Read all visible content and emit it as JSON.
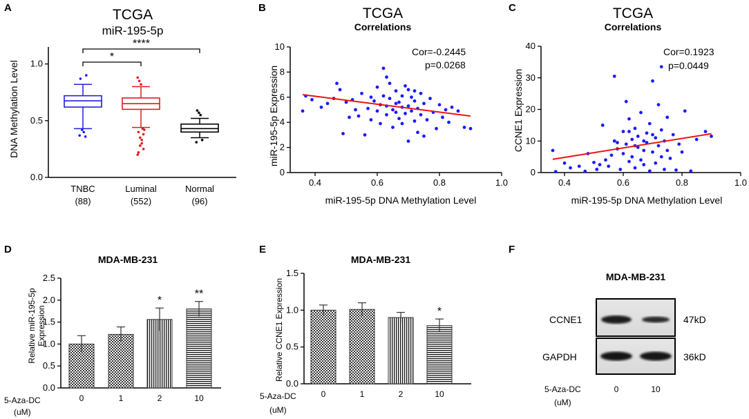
{
  "colors": {
    "blue": "#1f1fdd",
    "red": "#e01a1a",
    "black": "#000000",
    "scatter_blue": "#1a1aff",
    "line_red": "#ee1111"
  },
  "panel_labels": [
    "A",
    "B",
    "C",
    "D",
    "E",
    "F"
  ],
  "chart_data": [
    {
      "id": "A",
      "type": "box",
      "title": "TCGA",
      "subtitle": "miR-195-5p",
      "ylabel": "DNA Methylation Level",
      "ylim": [
        0.0,
        1.15
      ],
      "yticks": [
        "0.0",
        "0.5",
        "1.0"
      ],
      "groups": [
        {
          "name": "TNBC",
          "n": "(88)",
          "min": 0.43,
          "q1": 0.62,
          "median": 0.675,
          "q3": 0.72,
          "max": 0.82,
          "outliers": [
            0.37,
            0.36,
            0.4,
            0.42,
            0.87,
            0.9
          ]
        },
        {
          "name": "Luminal",
          "n": "(552)",
          "min": 0.44,
          "q1": 0.6,
          "median": 0.65,
          "q3": 0.7,
          "max": 0.8,
          "outliers": [
            0.2,
            0.25,
            0.3,
            0.35,
            0.4,
            0.42,
            0.43,
            0.82,
            0.85,
            0.88,
            0.38,
            0.33,
            0.28,
            0.22
          ]
        },
        {
          "name": "Normal",
          "n": "(96)",
          "min": 0.35,
          "q1": 0.4,
          "median": 0.43,
          "q3": 0.47,
          "max": 0.52,
          "outliers": [
            0.31,
            0.33,
            0.55,
            0.57,
            0.59
          ]
        }
      ],
      "significance": [
        {
          "from": 0,
          "to": 1,
          "label": "*"
        },
        {
          "from": 0,
          "to": 2,
          "label": "****"
        }
      ]
    },
    {
      "id": "B",
      "type": "scatter",
      "title": "TCGA",
      "subtitle": "Correlations",
      "xlabel": "miR-195-5p DNA Methylation Level",
      "ylabel": "miR-195-5p Expression",
      "xlim": [
        0.32,
        1.0
      ],
      "ylim": [
        0,
        10
      ],
      "xticks": [
        "0.4",
        "0.6",
        "0.8",
        "1.0"
      ],
      "yticks": [
        "0",
        "2",
        "4",
        "6",
        "8",
        "10"
      ],
      "annotation": [
        "Cor=-0.2445",
        "p=0.0268"
      ],
      "fit": {
        "x": [
          0.36,
          0.9
        ],
        "y": [
          6.2,
          4.5
        ]
      },
      "points": [
        [
          0.36,
          4.9
        ],
        [
          0.37,
          6.1
        ],
        [
          0.39,
          5.8
        ],
        [
          0.42,
          5.2
        ],
        [
          0.44,
          5.5
        ],
        [
          0.46,
          5.9
        ],
        [
          0.47,
          7.1
        ],
        [
          0.48,
          6.6
        ],
        [
          0.49,
          3.1
        ],
        [
          0.5,
          5.6
        ],
        [
          0.51,
          4.4
        ],
        [
          0.52,
          5.8
        ],
        [
          0.53,
          5.0
        ],
        [
          0.54,
          4.5
        ],
        [
          0.55,
          6.3
        ],
        [
          0.56,
          3.0
        ],
        [
          0.57,
          5.1
        ],
        [
          0.58,
          4.2
        ],
        [
          0.59,
          5.7
        ],
        [
          0.6,
          6.8
        ],
        [
          0.6,
          4.9
        ],
        [
          0.61,
          5.4
        ],
        [
          0.61,
          3.9
        ],
        [
          0.62,
          8.3
        ],
        [
          0.62,
          6.1
        ],
        [
          0.63,
          5.3
        ],
        [
          0.63,
          4.6
        ],
        [
          0.64,
          7.1
        ],
        [
          0.64,
          5.9
        ],
        [
          0.65,
          5.0
        ],
        [
          0.65,
          3.6
        ],
        [
          0.66,
          6.5
        ],
        [
          0.66,
          4.8
        ],
        [
          0.67,
          5.6
        ],
        [
          0.67,
          4.3
        ],
        [
          0.68,
          6.1
        ],
        [
          0.68,
          5.2
        ],
        [
          0.68,
          3.9
        ],
        [
          0.69,
          4.7
        ],
        [
          0.7,
          6.6
        ],
        [
          0.7,
          5.3
        ],
        [
          0.7,
          2.5
        ],
        [
          0.71,
          4.9
        ],
        [
          0.71,
          6.0
        ],
        [
          0.72,
          5.7
        ],
        [
          0.72,
          4.1
        ],
        [
          0.73,
          5.1
        ],
        [
          0.73,
          3.2
        ],
        [
          0.74,
          6.3
        ],
        [
          0.74,
          4.6
        ],
        [
          0.75,
          5.5
        ],
        [
          0.75,
          2.9
        ],
        [
          0.76,
          4.2
        ],
        [
          0.77,
          5.9
        ],
        [
          0.78,
          4.8
        ],
        [
          0.79,
          3.5
        ],
        [
          0.8,
          5.4
        ],
        [
          0.81,
          4.4
        ],
        [
          0.82,
          5.0
        ],
        [
          0.83,
          4.0
        ],
        [
          0.84,
          5.2
        ],
        [
          0.86,
          4.9
        ],
        [
          0.88,
          3.6
        ],
        [
          0.9,
          3.5
        ],
        [
          0.58,
          6.0
        ],
        [
          0.63,
          7.6
        ],
        [
          0.66,
          5.5
        ],
        [
          0.69,
          6.9
        ],
        [
          0.72,
          6.5
        ]
      ]
    },
    {
      "id": "C",
      "type": "scatter",
      "title": "TCGA",
      "subtitle": "Correlations",
      "xlabel": "miR-195-5p DNA Methylation Level",
      "ylabel": "CCNE1 Expression",
      "xlim": [
        0.32,
        1.0
      ],
      "ylim": [
        0,
        40
      ],
      "xticks": [
        "0.4",
        "0.6",
        "0.8",
        "1.0"
      ],
      "yticks": [
        "0",
        "10",
        "20",
        "30",
        "40"
      ],
      "annotation": [
        "Cor=0.1923",
        "p=0.0449"
      ],
      "fit": {
        "x": [
          0.36,
          0.9
        ],
        "y": [
          4.2,
          12.3
        ]
      },
      "points": [
        [
          0.36,
          7.0
        ],
        [
          0.37,
          0.3
        ],
        [
          0.4,
          3.0
        ],
        [
          0.42,
          1.5
        ],
        [
          0.45,
          2.0
        ],
        [
          0.47,
          0.4
        ],
        [
          0.48,
          6.0
        ],
        [
          0.5,
          3.2
        ],
        [
          0.51,
          1.0
        ],
        [
          0.52,
          2.5
        ],
        [
          0.53,
          15.0
        ],
        [
          0.54,
          4.0
        ],
        [
          0.55,
          2.0
        ],
        [
          0.56,
          5.5
        ],
        [
          0.57,
          10.0
        ],
        [
          0.57,
          30.5
        ],
        [
          0.58,
          7.5
        ],
        [
          0.59,
          1.0
        ],
        [
          0.6,
          13.0
        ],
        [
          0.6,
          6.0
        ],
        [
          0.61,
          22.5
        ],
        [
          0.61,
          9.0
        ],
        [
          0.62,
          3.5
        ],
        [
          0.62,
          17.0
        ],
        [
          0.63,
          10.5
        ],
        [
          0.63,
          5.0
        ],
        [
          0.64,
          14.0
        ],
        [
          0.64,
          1.5
        ],
        [
          0.65,
          8.0
        ],
        [
          0.65,
          11.5
        ],
        [
          0.66,
          4.0
        ],
        [
          0.66,
          19.0
        ],
        [
          0.67,
          7.0
        ],
        [
          0.67,
          2.5
        ],
        [
          0.68,
          12.5
        ],
        [
          0.68,
          9.5
        ],
        [
          0.69,
          0.5
        ],
        [
          0.69,
          15.5
        ],
        [
          0.7,
          29.0
        ],
        [
          0.7,
          6.5
        ],
        [
          0.71,
          11.0
        ],
        [
          0.71,
          3.0
        ],
        [
          0.72,
          8.5
        ],
        [
          0.72,
          21.5
        ],
        [
          0.73,
          33.5
        ],
        [
          0.73,
          5.0
        ],
        [
          0.73,
          13.5
        ],
        [
          0.74,
          1.0
        ],
        [
          0.74,
          10.0
        ],
        [
          0.75,
          17.5
        ],
        [
          0.75,
          7.0
        ],
        [
          0.76,
          4.5
        ],
        [
          0.77,
          12.0
        ],
        [
          0.78,
          0.8
        ],
        [
          0.79,
          9.0
        ],
        [
          0.8,
          6.5
        ],
        [
          0.81,
          19.5
        ],
        [
          0.83,
          0.5
        ],
        [
          0.85,
          10.5
        ],
        [
          0.88,
          13.0
        ],
        [
          0.9,
          11.5
        ],
        [
          0.64,
          8.5
        ],
        [
          0.67,
          10.0
        ],
        [
          0.7,
          12.0
        ],
        [
          0.62,
          13.0
        ],
        [
          0.58,
          9.5
        ]
      ]
    },
    {
      "id": "D",
      "type": "bar",
      "title": "MDA-MB-231",
      "ylabel": "Relative miR-195-5p Expression",
      "ylabel_lines": [
        "Relative miR-195-5p",
        "Expression"
      ],
      "treatment_label": "5-Aza-DC",
      "unit_label": "(uM)",
      "categories": [
        "0",
        "1",
        "2",
        "10"
      ],
      "values": [
        1.0,
        1.22,
        1.56,
        1.8
      ],
      "errors": [
        0.19,
        0.17,
        0.26,
        0.17
      ],
      "significance": [
        "",
        "",
        "*",
        "**"
      ],
      "ylim": [
        0,
        2.5
      ],
      "yticks": [
        "0.0",
        "0.5",
        "1.0",
        "1.5",
        "2.0",
        "2.5"
      ]
    },
    {
      "id": "E",
      "type": "bar",
      "title": "MDA-MB-231",
      "ylabel": "Relative CCNE1 Expression",
      "treatment_label": "5-Aza-DC",
      "unit_label": "(uM)",
      "categories": [
        "0",
        "1",
        "2",
        "10"
      ],
      "values": [
        1.0,
        1.01,
        0.9,
        0.79
      ],
      "errors": [
        0.07,
        0.09,
        0.07,
        0.09
      ],
      "significance": [
        "",
        "",
        "",
        "*"
      ],
      "ylim": [
        0,
        1.5
      ],
      "yticks": [
        "0.0",
        "0.5",
        "1.0",
        "1.5"
      ]
    }
  ],
  "blot": {
    "title": "MDA-MB-231",
    "rows": [
      {
        "protein": "CCNE1",
        "size": "47kD"
      },
      {
        "protein": "GAPDH",
        "size": "36kD"
      }
    ],
    "treatment_label": "5-Aza-DC",
    "unit_label": "(uM)",
    "lanes": [
      "0",
      "10"
    ]
  }
}
